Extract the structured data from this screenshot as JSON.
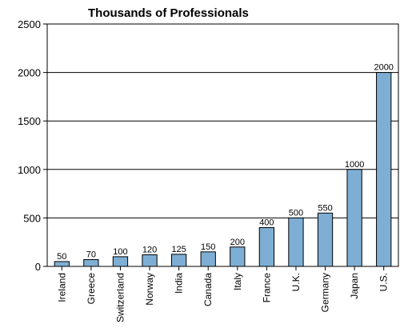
{
  "chart_data": {
    "type": "bar",
    "title": "Thousands of Professionals",
    "xlabel": "",
    "ylabel": "",
    "categories": [
      "Ireland",
      "Greece",
      "Switzerland",
      "Norway",
      "India",
      "Canada",
      "Italy",
      "France",
      "U.K.",
      "Germany",
      "Japan",
      "U.S."
    ],
    "values": [
      50,
      70,
      100,
      120,
      125,
      150,
      200,
      400,
      500,
      550,
      1000,
      2000
    ],
    "data_labels": [
      "50",
      "70",
      "100",
      "120",
      "125",
      "150",
      "200",
      "400",
      "500",
      "550",
      "1000",
      "2000"
    ],
    "ylim": [
      0,
      2500
    ],
    "yticks": [
      0,
      500,
      1000,
      1500,
      2000,
      2500
    ],
    "ytick_labels": [
      "0",
      "500",
      "1000",
      "1500",
      "2000",
      "2500"
    ],
    "grid": "horizontal",
    "legend": "none",
    "bar_color": "#7eaed3"
  }
}
